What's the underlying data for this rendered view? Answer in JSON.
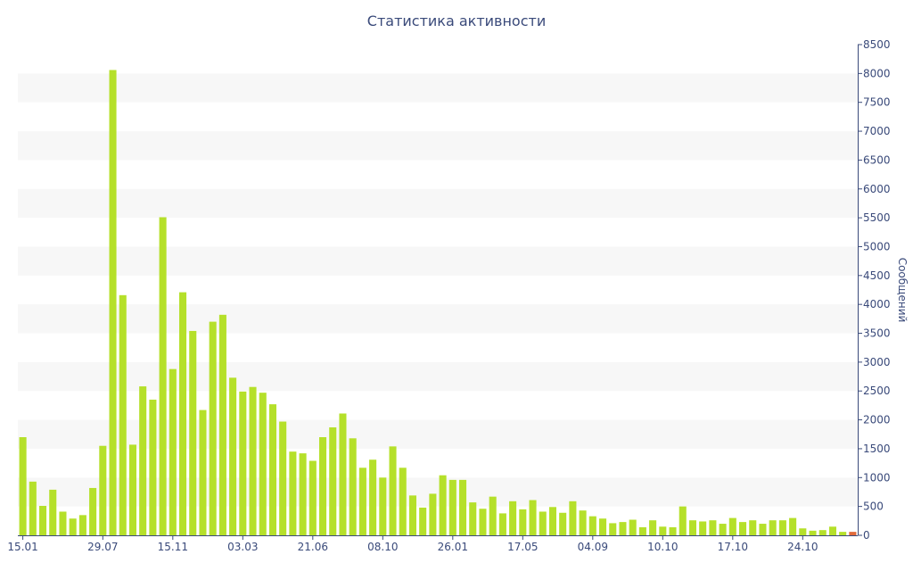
{
  "chart_data": {
    "type": "bar",
    "title": "Статистика активности",
    "ylabel": "Сообщений",
    "xlabel": "",
    "ylim": [
      0,
      8500
    ],
    "y_ticks": [
      0,
      500,
      1000,
      1500,
      2000,
      2500,
      3000,
      3500,
      4000,
      4500,
      5000,
      5500,
      6000,
      6500,
      7000,
      7500,
      8000,
      8500
    ],
    "y_axis_side": "right",
    "grid": "alternating horizontal bands",
    "x_tick_labels": [
      {
        "index": 0,
        "label": "15.01"
      },
      {
        "index": 8,
        "label": "29.07"
      },
      {
        "index": 15,
        "label": "15.11"
      },
      {
        "index": 22,
        "label": "03.03"
      },
      {
        "index": 29,
        "label": "21.06"
      },
      {
        "index": 36,
        "label": "08.10"
      },
      {
        "index": 43,
        "label": "26.01"
      },
      {
        "index": 50,
        "label": "17.05"
      },
      {
        "index": 57,
        "label": "04.09"
      },
      {
        "index": 64,
        "label": "10.10"
      },
      {
        "index": 71,
        "label": "17.10"
      },
      {
        "index": 78,
        "label": "24.10"
      }
    ],
    "values": [
      1700,
      930,
      510,
      790,
      410,
      290,
      350,
      820,
      1550,
      8060,
      4160,
      1570,
      2580,
      2350,
      5510,
      2880,
      4210,
      3540,
      2170,
      3700,
      3820,
      2730,
      2490,
      2570,
      2470,
      2270,
      1970,
      1450,
      1420,
      1290,
      1700,
      1870,
      2110,
      1680,
      1170,
      1310,
      1000,
      1540,
      1170,
      690,
      480,
      720,
      1040,
      960,
      960,
      570,
      460,
      670,
      380,
      590,
      450,
      610,
      410,
      490,
      390,
      590,
      430,
      330,
      290,
      210,
      230,
      270,
      140,
      260,
      150,
      140,
      500,
      260,
      240,
      260,
      200,
      300,
      230,
      260,
      200,
      260,
      260,
      300,
      120,
      80,
      90,
      150,
      60,
      60
    ],
    "highlight_last_color": "#e0693a",
    "bar_color": "#b5e02a",
    "text_color": "#3a4a7a",
    "band_color": "#f7f7f7"
  }
}
